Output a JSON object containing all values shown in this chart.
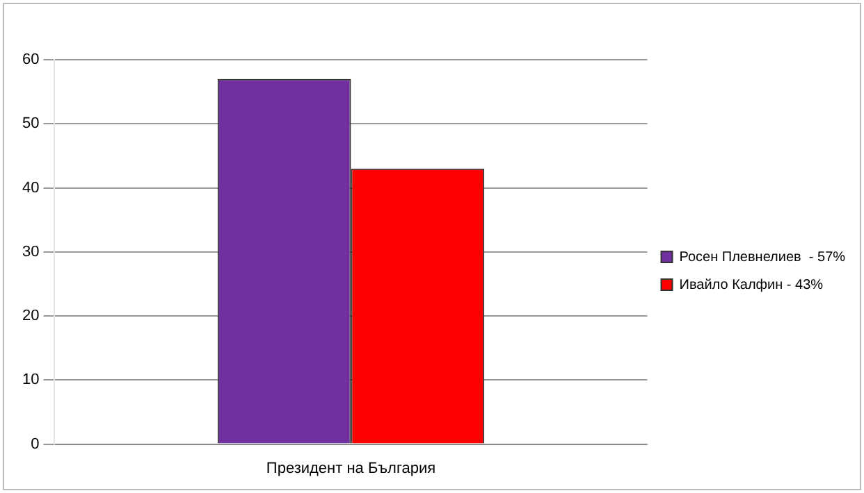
{
  "chart_data": {
    "type": "bar",
    "categories": [
      "Президент на България"
    ],
    "series": [
      {
        "name": "Росен Плевнелиев  - 57%",
        "color": "#7030a0",
        "values": [
          57
        ]
      },
      {
        "name": "Ивайло Калфин - 43%",
        "color": "#ff0000",
        "values": [
          43
        ]
      }
    ],
    "ylim": [
      0,
      60
    ],
    "yticks": [
      0,
      10,
      20,
      30,
      40,
      50,
      60
    ],
    "grid": "y",
    "legend": "right"
  }
}
